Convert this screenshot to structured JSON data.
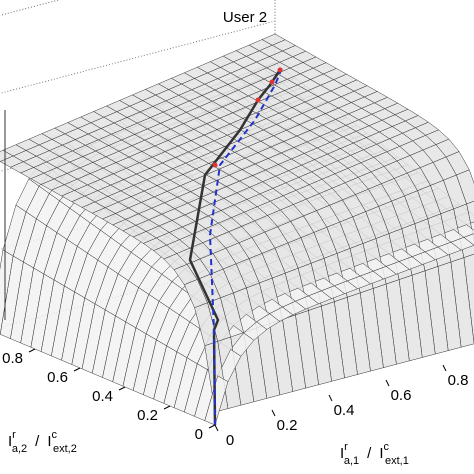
{
  "chart_data": {
    "type": "surface",
    "title": "User 2",
    "xlabel": {
      "base": "I",
      "sup": "r",
      "sub": "a,1",
      "sep": "/",
      "base2": "I",
      "sup2": "c",
      "sub2": "ext,1"
    },
    "ylabel": {
      "base": "I",
      "sup": "r",
      "sub": "a,2",
      "sep": "/",
      "base2": "I",
      "sup2": "c",
      "sub2": "ext,2"
    },
    "xticks": [
      0,
      0.2,
      0.4,
      0.6,
      0.8
    ],
    "yticks": [
      0,
      0.2,
      0.4,
      0.6,
      0.8
    ],
    "grid": true
  }
}
